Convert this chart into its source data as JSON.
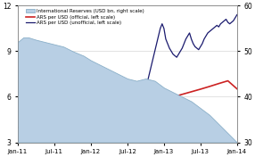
{
  "bg_color": "#ffffff",
  "fill_color": "#b8cfe4",
  "fill_edge_color": "#8aafc8",
  "official_color": "#cc2222",
  "unofficial_color": "#1a1a6e",
  "left_ylim": [
    3,
    12
  ],
  "right_ylim": [
    30,
    60
  ],
  "left_yticks": [
    3,
    6,
    9,
    12
  ],
  "right_yticks": [
    30,
    40,
    50,
    60
  ],
  "xtick_labels": [
    "Jan-11",
    "Jul-11",
    "Jan-12",
    "Jul-12",
    "Jan-13",
    "Jul-13",
    "Jan-14"
  ],
  "legend_entries": [
    "International Reserves (USD bn, right scale)",
    "ARS per USD (official, left scale)",
    "ARS per USD (unofficial, left scale)"
  ],
  "intl_reserves_x": [
    0,
    0.3,
    0.6,
    1.0,
    1.5,
    2.0,
    2.5,
    3.0,
    3.3,
    3.6,
    4.0,
    4.5,
    5.0,
    5.5,
    6.0,
    6.5,
    7.0,
    7.5,
    8.0,
    8.5,
    9.0,
    9.5,
    10.0,
    10.5,
    11.0,
    11.5,
    12.0
  ],
  "intl_reserves_y": [
    52,
    53,
    53,
    52.5,
    52,
    51.5,
    51,
    50,
    49.5,
    49,
    48,
    47,
    46,
    45,
    44,
    43.5,
    44,
    43.5,
    42,
    41,
    40,
    39,
    37.5,
    36,
    34,
    32,
    30
  ],
  "official_x": [
    0,
    0.5,
    1.0,
    1.5,
    2.0,
    2.5,
    3.0,
    3.5,
    4.0,
    4.5,
    5.0,
    5.5,
    6.0,
    6.5,
    7.0,
    7.5,
    8.0,
    8.5,
    9.0,
    9.5,
    10.0,
    10.5,
    11.0,
    11.5,
    12.0
  ],
  "official_y": [
    3.98,
    4.04,
    4.11,
    4.19,
    4.28,
    4.38,
    4.48,
    4.59,
    4.7,
    4.82,
    4.94,
    5.07,
    5.21,
    5.36,
    5.51,
    5.67,
    5.83,
    5.99,
    6.16,
    6.33,
    6.5,
    6.68,
    6.87,
    7.05,
    6.52
  ],
  "unofficial_x": [
    0,
    0.2,
    0.4,
    0.6,
    0.8,
    1.0,
    1.2,
    1.4,
    1.6,
    1.8,
    2.0,
    2.2,
    2.4,
    2.6,
    2.8,
    3.0,
    3.2,
    3.4,
    3.5,
    3.6,
    3.8,
    4.0,
    4.1,
    4.2,
    4.3,
    4.4,
    4.5,
    4.6,
    4.7,
    4.8,
    4.9,
    5.0,
    5.1,
    5.2,
    5.3,
    5.4,
    5.5,
    5.6,
    5.7,
    5.8,
    5.9,
    6.0,
    6.1,
    6.2,
    6.3,
    6.4,
    6.5,
    6.6,
    6.7,
    6.8,
    6.9,
    7.0,
    7.1,
    7.2,
    7.3,
    7.4,
    7.5,
    7.6,
    7.7,
    7.8,
    7.9,
    8.0,
    8.1,
    8.2,
    8.3,
    8.4,
    8.5,
    8.6,
    8.7,
    8.8,
    8.9,
    9.0,
    9.1,
    9.2,
    9.3,
    9.4,
    9.5,
    9.6,
    9.7,
    9.8,
    9.9,
    10.0,
    10.1,
    10.2,
    10.3,
    10.4,
    10.5,
    10.6,
    10.7,
    10.8,
    10.9,
    11.0,
    11.1,
    11.2,
    11.3,
    11.4,
    11.5,
    11.6,
    11.7,
    11.8,
    11.9,
    12.0
  ],
  "unofficial_y": [
    4.0,
    4.02,
    4.05,
    4.07,
    4.1,
    4.12,
    4.15,
    4.18,
    4.2,
    4.22,
    4.25,
    4.28,
    4.3,
    4.33,
    4.35,
    4.38,
    4.4,
    4.42,
    4.45,
    4.5,
    4.55,
    4.6,
    4.65,
    4.7,
    4.75,
    4.8,
    4.85,
    4.9,
    4.95,
    5.0,
    5.05,
    5.1,
    5.2,
    5.3,
    5.4,
    5.5,
    5.55,
    5.6,
    5.7,
    5.8,
    5.85,
    5.9,
    6.0,
    6.1,
    6.2,
    6.3,
    6.35,
    6.4,
    6.45,
    6.5,
    6.55,
    6.6,
    7.0,
    7.5,
    8.0,
    8.5,
    9.0,
    9.5,
    10.0,
    10.5,
    10.8,
    10.5,
    9.8,
    9.5,
    9.2,
    9.0,
    8.8,
    8.7,
    8.6,
    8.8,
    9.0,
    9.2,
    9.5,
    9.8,
    10.0,
    10.2,
    9.8,
    9.5,
    9.3,
    9.2,
    9.1,
    9.3,
    9.5,
    9.8,
    10.0,
    10.2,
    10.3,
    10.4,
    10.5,
    10.6,
    10.7,
    10.6,
    10.8,
    10.9,
    11.0,
    11.1,
    10.9,
    10.8,
    10.9,
    11.0,
    11.2,
    11.4
  ]
}
